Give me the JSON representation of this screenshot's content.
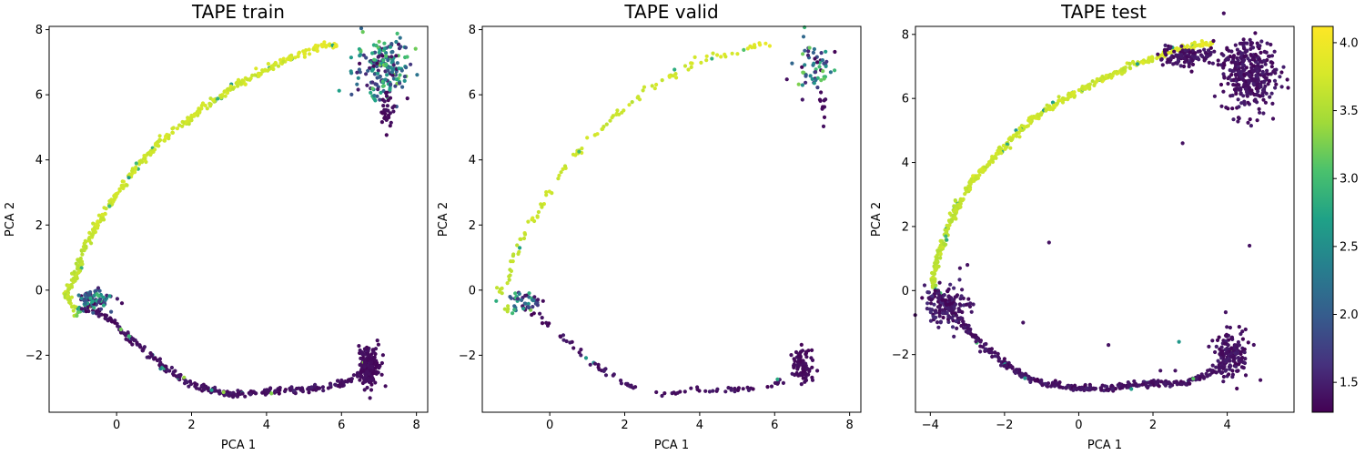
{
  "chart_data": [
    {
      "type": "scatter",
      "title": "TAPE train",
      "xlabel": "PCA 1",
      "ylabel": "PCA 2",
      "xlim": [
        -1.8,
        8.3
      ],
      "ylim": [
        -3.75,
        8.1
      ],
      "xticks": [
        0,
        2,
        4,
        6,
        8
      ],
      "yticks": [
        -2,
        0,
        2,
        4,
        6,
        8
      ],
      "density": 1.0,
      "segments": [
        {
          "x": [
            5.9,
            5.6,
            5.0,
            4.2,
            3.2,
            2.2,
            1.2,
            0.4,
            -0.2,
            -0.6,
            -0.9,
            -1.0,
            -1.1,
            -1.25,
            -1.4,
            -1.1,
            -0.8,
            -0.3,
            0.4,
            1.2,
            2.0,
            3.0,
            4.0,
            5.0,
            6.0,
            6.5,
            6.7
          ],
          "y": [
            7.5,
            7.55,
            7.3,
            6.9,
            6.3,
            5.5,
            4.6,
            3.6,
            2.6,
            1.9,
            1.2,
            0.8,
            0.4,
            0.1,
            0.0,
            -0.7,
            -0.5,
            -0.8,
            -1.5,
            -2.3,
            -2.9,
            -3.2,
            -3.1,
            -3.05,
            -2.9,
            -2.6,
            -1.8
          ],
          "values": [
            3.9,
            3.85,
            3.8,
            3.75,
            3.7,
            3.7,
            3.7,
            3.7,
            3.7,
            3.7,
            3.6,
            3.6,
            3.6,
            3.6,
            3.6,
            3.6,
            1.4,
            1.4,
            1.4,
            1.4,
            1.4,
            1.4,
            1.4,
            1.4,
            1.4,
            1.4,
            1.4
          ]
        }
      ],
      "clusters": [
        {
          "x": 7.1,
          "y": 6.8,
          "sx": 0.35,
          "sy": 0.45,
          "n": 200,
          "values": [
            1.3,
            3.3
          ]
        },
        {
          "x": 6.75,
          "y": -2.3,
          "sx": 0.15,
          "sy": 0.3,
          "n": 150,
          "values": [
            1.3,
            1.4
          ]
        },
        {
          "x": -0.6,
          "y": -0.3,
          "sx": 0.25,
          "sy": 0.15,
          "n": 80,
          "values": [
            1.3,
            3.0
          ]
        },
        {
          "x": 7.2,
          "y": 5.5,
          "sx": 0.08,
          "sy": 0.3,
          "n": 30,
          "values": [
            1.3,
            1.4
          ]
        }
      ]
    },
    {
      "type": "scatter",
      "title": "TAPE valid",
      "xlabel": "PCA 1",
      "ylabel": "PCA 2",
      "xlim": [
        -1.8,
        8.3
      ],
      "ylim": [
        -3.75,
        8.1
      ],
      "xticks": [
        0,
        2,
        4,
        6,
        8
      ],
      "yticks": [
        -2,
        0,
        2,
        4,
        6,
        8
      ],
      "density": 0.3,
      "segments": [
        {
          "x": [
            5.9,
            5.6,
            5.0,
            4.2,
            3.6,
            2.6,
            1.8,
            1.0,
            0.4,
            -0.2,
            -0.6,
            -0.9,
            -1.0,
            -1.1,
            -1.25,
            -1.4,
            -1.1,
            -0.8,
            -0.3,
            0.4,
            1.2,
            2.0,
            3.0,
            4.0,
            5.0,
            6.0,
            6.5,
            6.7
          ],
          "y": [
            7.5,
            7.55,
            7.3,
            7.1,
            6.8,
            6.2,
            5.4,
            4.5,
            3.8,
            2.6,
            1.9,
            1.2,
            0.8,
            0.4,
            0.1,
            0.0,
            -0.7,
            -0.5,
            -0.8,
            -1.5,
            -2.3,
            -2.9,
            -3.2,
            -3.1,
            -3.05,
            -2.9,
            -2.6,
            -1.8
          ],
          "values": [
            3.9,
            3.85,
            3.8,
            3.75,
            3.7,
            3.7,
            3.7,
            3.7,
            3.7,
            3.7,
            3.7,
            3.6,
            3.6,
            3.6,
            3.6,
            3.6,
            3.6,
            1.4,
            1.4,
            1.4,
            1.4,
            1.4,
            1.4,
            1.4,
            1.4,
            1.4,
            1.4,
            1.4
          ]
        }
      ],
      "clusters": [
        {
          "x": 7.1,
          "y": 6.8,
          "sx": 0.3,
          "sy": 0.4,
          "n": 60,
          "values": [
            1.3,
            3.3
          ]
        },
        {
          "x": 6.75,
          "y": -2.3,
          "sx": 0.15,
          "sy": 0.3,
          "n": 70,
          "values": [
            1.3,
            1.4
          ]
        },
        {
          "x": -0.6,
          "y": -0.3,
          "sx": 0.25,
          "sy": 0.15,
          "n": 40,
          "values": [
            1.3,
            3.0
          ]
        },
        {
          "x": 7.3,
          "y": 5.6,
          "sx": 0.06,
          "sy": 0.2,
          "n": 10,
          "values": [
            1.3,
            1.4
          ]
        }
      ]
    },
    {
      "type": "scatter",
      "title": "TAPE test",
      "xlabel": "PCA 1",
      "ylabel": "PCA 2",
      "xlim": [
        -4.4,
        5.8
      ],
      "ylim": [
        -3.8,
        8.25
      ],
      "xticks": [
        -4,
        -2,
        0,
        2,
        4
      ],
      "yticks": [
        -2,
        0,
        2,
        4,
        6,
        8
      ],
      "density": 1.2,
      "segments": [
        {
          "x": [
            3.6,
            3.3,
            2.6,
            1.6,
            0.6,
            -0.4,
            -1.3,
            -2.1,
            -2.8,
            -3.3,
            -3.6,
            -3.8,
            -3.9,
            -3.9,
            -3.8,
            -3.3,
            -2.7,
            -2.0,
            -1.2,
            -0.2,
            0.8,
            1.8,
            2.8,
            3.5,
            4.0,
            4.3
          ],
          "y": [
            7.7,
            7.7,
            7.5,
            7.1,
            6.6,
            6.0,
            5.3,
            4.4,
            3.5,
            2.6,
            1.7,
            1.0,
            0.5,
            0.1,
            -0.1,
            -0.8,
            -1.6,
            -2.3,
            -2.8,
            -3.05,
            -3.05,
            -2.9,
            -2.9,
            -2.6,
            -2.2,
            -1.7
          ],
          "values": [
            3.9,
            3.85,
            3.8,
            3.7,
            3.7,
            3.7,
            3.7,
            3.7,
            3.7,
            3.6,
            3.6,
            3.6,
            3.6,
            3.6,
            1.4,
            1.4,
            1.4,
            1.4,
            1.4,
            1.4,
            1.4,
            1.4,
            1.4,
            1.4,
            1.4,
            1.4
          ]
        }
      ],
      "clusters": [
        {
          "x": 4.6,
          "y": 6.7,
          "sx": 0.35,
          "sy": 0.55,
          "n": 320,
          "values": [
            1.3,
            1.5
          ]
        },
        {
          "x": 3.0,
          "y": 7.3,
          "sx": 0.45,
          "sy": 0.15,
          "n": 120,
          "values": [
            1.3,
            1.5
          ]
        },
        {
          "x": 4.1,
          "y": -2.0,
          "sx": 0.25,
          "sy": 0.35,
          "n": 140,
          "values": [
            1.3,
            1.5
          ]
        },
        {
          "x": -3.55,
          "y": -0.5,
          "sx": 0.3,
          "sy": 0.3,
          "n": 140,
          "values": [
            1.3,
            1.6
          ]
        }
      ],
      "outliers": [
        {
          "x": -0.8,
          "y": 1.5,
          "v": 1.4
        },
        {
          "x": 4.6,
          "y": 1.4,
          "v": 1.4
        },
        {
          "x": 2.8,
          "y": 4.6,
          "v": 1.4
        },
        {
          "x": -1.5,
          "y": -1.0,
          "v": 1.4
        },
        {
          "x": 0.8,
          "y": -1.7,
          "v": 1.4
        },
        {
          "x": 2.7,
          "y": -1.6,
          "v": 2.6
        },
        {
          "x": 2.2,
          "y": -2.5,
          "v": 1.4
        },
        {
          "x": 2.6,
          "y": -2.5,
          "v": 1.4
        },
        {
          "x": -3.0,
          "y": 0.8,
          "v": 1.4
        },
        {
          "x": -3.2,
          "y": 0.7,
          "v": 1.4
        }
      ]
    }
  ],
  "colorbar": {
    "min": 1.28,
    "max": 4.12,
    "ticks": [
      "1.5",
      "2.0",
      "2.5",
      "3.0",
      "3.5",
      "4.0"
    ],
    "colormap": "viridis"
  }
}
